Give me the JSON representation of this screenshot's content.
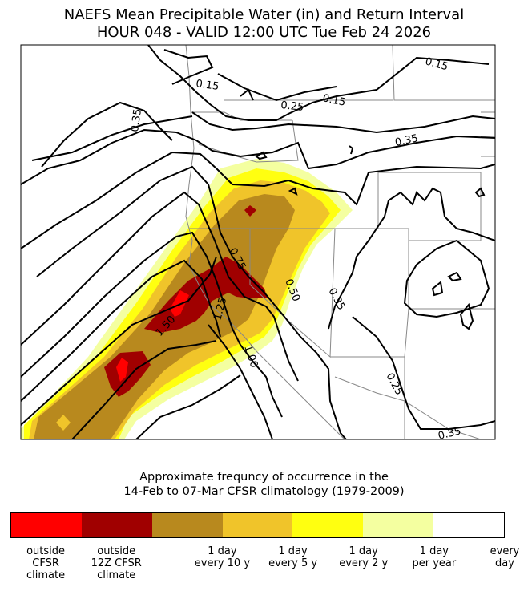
{
  "title": {
    "line1": "NAEFS Mean Precipitable Water (in) and Return Interval",
    "line2": "HOUR 048 - VALID 12:00 UTC Tue Feb 24 2026"
  },
  "contour_labels": [
    {
      "id": "c015a",
      "text": "0.15"
    },
    {
      "id": "c015b",
      "text": "0.15"
    },
    {
      "id": "c015c",
      "text": "0.15"
    },
    {
      "id": "c025a",
      "text": "0.25"
    },
    {
      "id": "c025b",
      "text": "0.25"
    },
    {
      "id": "c035a",
      "text": "0.35"
    },
    {
      "id": "c035b",
      "text": "0.35"
    },
    {
      "id": "c035c",
      "text": "0.35"
    },
    {
      "id": "c035d",
      "text": "0.35"
    },
    {
      "id": "c050",
      "text": "0.50"
    },
    {
      "id": "c075",
      "text": "0.75"
    },
    {
      "id": "c100",
      "text": "1.00"
    },
    {
      "id": "c125",
      "text": "1.25"
    },
    {
      "id": "c150",
      "text": "1.50"
    }
  ],
  "colorbar": {
    "title_line1": "Approximate frequncy of occurrence in the",
    "title_line2": "14-Feb to 07-Mar CFSR climatology (1979-2009)",
    "colors": [
      "#ff0000",
      "#a00000",
      "#b8891e",
      "#f0c42a",
      "#ffff10",
      "#f4ffa0",
      "#ffffff"
    ],
    "ticks": [
      {
        "label": "outside\nCFSR\nclimate"
      },
      {
        "label": "outside\n12Z CFSR\nclimate"
      },
      {
        "label": "1 day\nevery 10 y"
      },
      {
        "label": "1 day\nevery 5 y"
      },
      {
        "label": "1 day\nevery 2 y"
      },
      {
        "label": "1 day\nper year"
      },
      {
        "label": "every\nday"
      }
    ]
  }
}
